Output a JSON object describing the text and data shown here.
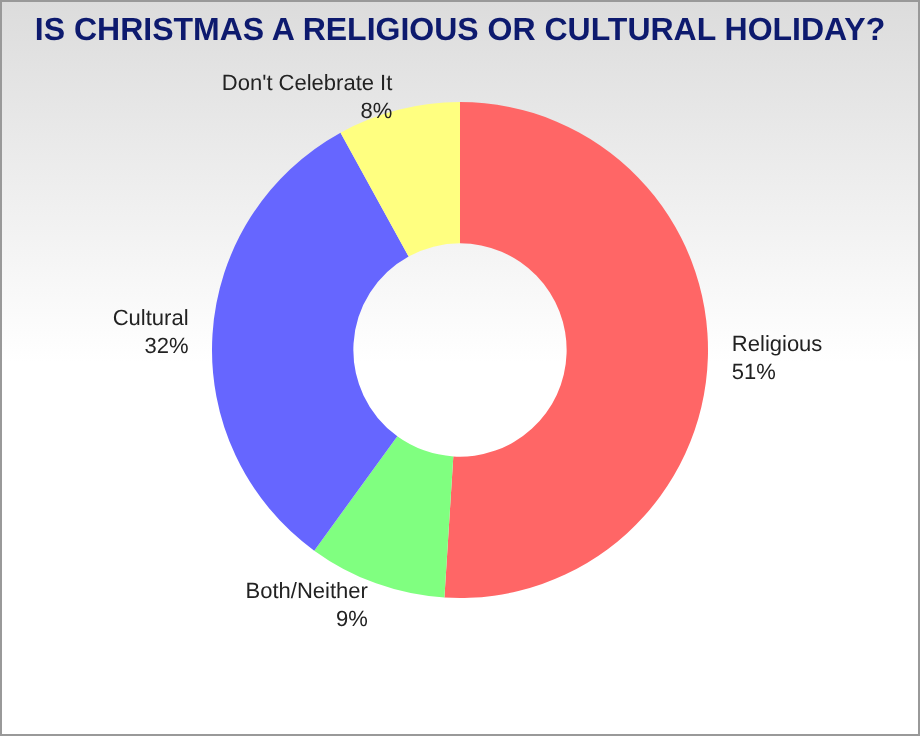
{
  "chart_data": {
    "type": "donut",
    "title": "IS CHRISTMAS A RELIGIOUS OR CULTURAL HOLIDAY?",
    "categories": [
      "Religious",
      "Both/Neither",
      "Cultural",
      "Don't Celebrate It"
    ],
    "values": [
      51,
      9,
      32,
      8
    ],
    "value_labels": [
      "51%",
      "9%",
      "32%",
      "8%"
    ],
    "colors": [
      "#ff6666",
      "#80ff80",
      "#6666ff",
      "#ffff80"
    ],
    "legend": false
  }
}
